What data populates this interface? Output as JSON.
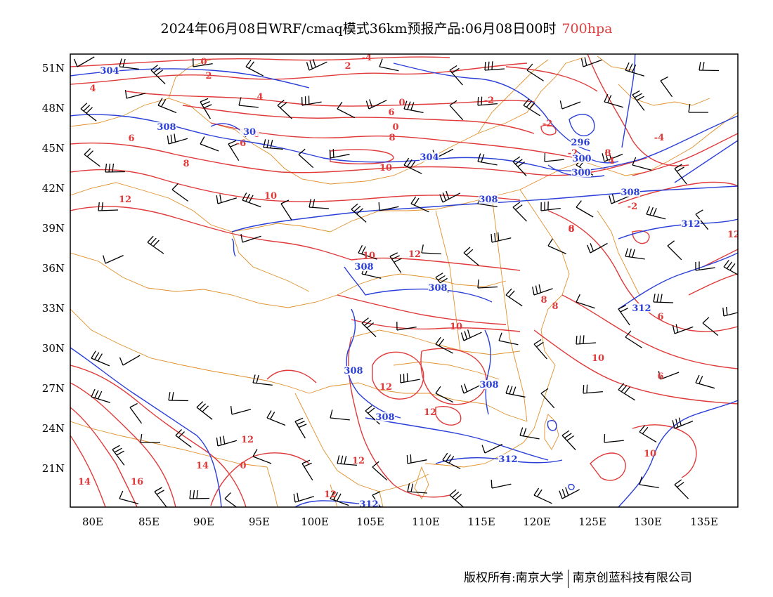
{
  "title": {
    "main": "2024年06月08日WRF/cmaq模式36km预报产品:06月08日00时",
    "level": "700hpa"
  },
  "map": {
    "lat_labels": [
      "51N",
      "48N",
      "45N",
      "42N",
      "39N",
      "36N",
      "33N",
      "30N",
      "27N",
      "24N",
      "21N"
    ],
    "lon_labels": [
      "80E",
      "85E",
      "90E",
      "95E",
      "100E",
      "105E",
      "110E",
      "115E",
      "120E",
      "125E",
      "130E",
      "135E"
    ],
    "colors": {
      "frame": "#000000",
      "border": "#e0902a",
      "temp": "#e03a3a",
      "height": "#2a3fd8",
      "wind": "#000000"
    },
    "temp_labels": [
      "4",
      "0",
      "2",
      "-4",
      "2",
      "0",
      "-2",
      "6",
      "4",
      "0",
      "-2",
      "6",
      "8",
      "-6",
      "-2",
      "6",
      "8",
      "10",
      "10",
      "12",
      "12",
      "10",
      "8",
      "8",
      "10",
      "10",
      "12",
      "12",
      "12",
      "14",
      "14",
      "16",
      "10",
      "6",
      "4",
      "-4",
      "-2",
      "8",
      "8",
      "6",
      "6",
      "12",
      "12",
      "0",
      "12"
    ],
    "height_labels": [
      "304",
      "308",
      "30",
      "300",
      "296",
      "300",
      "304",
      "308",
      "308",
      "312",
      "308",
      "308",
      "312",
      "308",
      "308",
      "312",
      "308",
      "312"
    ]
  },
  "footer": {
    "left": "版权所有:南京大学",
    "right": "南京创蓝科技有限公司"
  }
}
